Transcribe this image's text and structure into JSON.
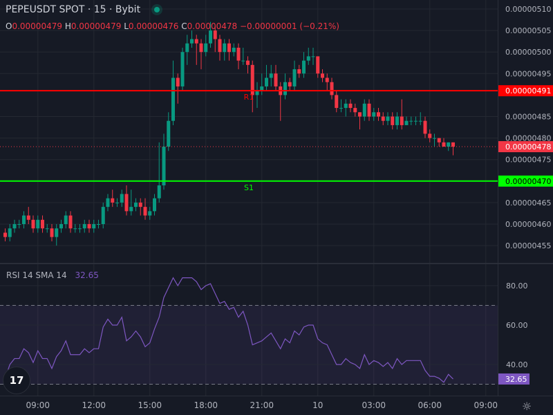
{
  "header": {
    "title": "PEPEUSDT SPOT · 15 · Bybit",
    "status": "market-open",
    "ohlc": {
      "o_label": "O",
      "o": "0.00000479",
      "h_label": "H",
      "h": "0.00000479",
      "l_label": "L",
      "l": "0.00000476",
      "c_label": "C",
      "c": "0.00000478",
      "change": "−0.00000001 (−0.21%)"
    }
  },
  "rsi_legend": {
    "name": "RSI",
    "params": "14 SMA 14",
    "value": "32.65"
  },
  "colors": {
    "up": "#089981",
    "down": "#f23645",
    "rsi": "#7e57c2",
    "r1": "#ff0000",
    "s1": "#00ff00",
    "bg": "#161a25",
    "grid": "#242832"
  },
  "chart_data": [
    {
      "type": "candlestick",
      "interval": "15",
      "price_axis_ticks": [
        "0.00000510",
        "0.00000505",
        "0.00000500",
        "0.00000495",
        "0.00000485",
        "0.00000480",
        "0.00000475",
        "0.00000465",
        "0.00000460",
        "0.00000455"
      ],
      "ylim": [
        4.5e-06,
        5.12e-06
      ],
      "x_ticks": [
        "09:00",
        "12:00",
        "15:00",
        "18:00",
        "21:00",
        "10",
        "03:00",
        "06:00",
        "09:00"
      ],
      "grid": true,
      "levels": [
        {
          "name": "R1",
          "price": 4.91e-06,
          "label": "0.00000491",
          "color": "#ff0000"
        },
        {
          "name": "S1",
          "price": 4.7e-06,
          "label": "0.00000470",
          "color": "#00ff00"
        }
      ],
      "last_price": {
        "price": 4.78e-06,
        "label": "0.00000478"
      },
      "candles_ohlc": [
        [
          4.58e-06,
          4.59e-06,
          4.56e-06,
          4.57e-06
        ],
        [
          4.57e-06,
          4.6e-06,
          4.56e-06,
          4.59e-06
        ],
        [
          4.59e-06,
          4.61e-06,
          4.58e-06,
          4.6e-06
        ],
        [
          4.6e-06,
          4.61e-06,
          4.59e-06,
          4.6e-06
        ],
        [
          4.6e-06,
          4.63e-06,
          4.59e-06,
          4.62e-06
        ],
        [
          4.62e-06,
          4.64e-06,
          4.6e-06,
          4.61e-06
        ],
        [
          4.61e-06,
          4.62e-06,
          4.58e-06,
          4.59e-06
        ],
        [
          4.59e-06,
          4.62e-06,
          4.58e-06,
          4.61e-06
        ],
        [
          4.61e-06,
          4.62e-06,
          4.58e-06,
          4.59e-06
        ],
        [
          4.59e-06,
          4.6e-06,
          4.58e-06,
          4.59e-06
        ],
        [
          4.59e-06,
          4.6e-06,
          4.56e-06,
          4.57e-06
        ],
        [
          4.57e-06,
          4.6e-06,
          4.55e-06,
          4.59e-06
        ],
        [
          4.59e-06,
          4.61e-06,
          4.58e-06,
          4.6e-06
        ],
        [
          4.6e-06,
          4.63e-06,
          4.59e-06,
          4.62e-06
        ],
        [
          4.62e-06,
          4.63e-06,
          4.58e-06,
          4.59e-06
        ],
        [
          4.59e-06,
          4.6e-06,
          4.58e-06,
          4.59e-06
        ],
        [
          4.59e-06,
          4.6e-06,
          4.58e-06,
          4.59e-06
        ],
        [
          4.59e-06,
          4.61e-06,
          4.58e-06,
          4.6e-06
        ],
        [
          4.6e-06,
          4.61e-06,
          4.58e-06,
          4.59e-06
        ],
        [
          4.59e-06,
          4.61e-06,
          4.58e-06,
          4.6e-06
        ],
        [
          4.6e-06,
          4.61e-06,
          4.59e-06,
          4.6e-06
        ],
        [
          4.6e-06,
          4.65e-06,
          4.59e-06,
          4.64e-06
        ],
        [
          4.64e-06,
          4.67e-06,
          4.63e-06,
          4.66e-06
        ],
        [
          4.66e-06,
          4.68e-06,
          4.64e-06,
          4.65e-06
        ],
        [
          4.65e-06,
          4.66e-06,
          4.64e-06,
          4.65e-06
        ],
        [
          4.65e-06,
          4.68e-06,
          4.64e-06,
          4.67e-06
        ],
        [
          4.67e-06,
          4.69e-06,
          4.62e-06,
          4.63e-06
        ],
        [
          4.63e-06,
          4.68e-06,
          4.62e-06,
          4.64e-06
        ],
        [
          4.64e-06,
          4.66e-06,
          4.63e-06,
          4.65e-06
        ],
        [
          4.65e-06,
          4.66e-06,
          4.62e-06,
          4.64e-06
        ],
        [
          4.64e-06,
          4.66e-06,
          4.61e-06,
          4.62e-06
        ],
        [
          4.62e-06,
          4.64e-06,
          4.61e-06,
          4.63e-06
        ],
        [
          4.63e-06,
          4.67e-06,
          4.62e-06,
          4.66e-06
        ],
        [
          4.66e-06,
          4.79e-06,
          4.65e-06,
          4.69e-06
        ],
        [
          4.69e-06,
          4.81e-06,
          4.68e-06,
          4.78e-06
        ],
        [
          4.78e-06,
          4.86e-06,
          4.77e-06,
          4.84e-06
        ],
        [
          4.84e-06,
          4.98e-06,
          4.83e-06,
          4.94e-06
        ],
        [
          4.94e-06,
          4.95e-06,
          4.88e-06,
          4.92e-06
        ],
        [
          4.92e-06,
          5.01e-06,
          4.91e-06,
          5e-06
        ],
        [
          5e-06,
          5.04e-06,
          4.97e-06,
          5.02e-06
        ],
        [
          5.02e-06,
          5.05e-06,
          5.01e-06,
          5.03e-06
        ],
        [
          5.03e-06,
          5.04e-06,
          4.97e-06,
          5.02e-06
        ],
        [
          5.02e-06,
          5.03e-06,
          4.96e-06,
          5e-06
        ],
        [
          5e-06,
          5.04e-06,
          4.99e-06,
          5.02e-06
        ],
        [
          5.02e-06,
          5.07e-06,
          5.01e-06,
          5.05e-06
        ],
        [
          5.05e-06,
          5.06e-06,
          5e-06,
          5.03e-06
        ],
        [
          5.03e-06,
          5.04e-06,
          4.98e-06,
          5e-06
        ],
        [
          5e-06,
          5.03e-06,
          4.98e-06,
          5.02e-06
        ],
        [
          5.02e-06,
          5.03e-06,
          4.98e-06,
          5e-06
        ],
        [
          5e-06,
          5.02e-06,
          4.99e-06,
          5.01e-06
        ],
        [
          5.01e-06,
          5.02e-06,
          4.96e-06,
          4.98e-06
        ],
        [
          4.98e-06,
          5.01e-06,
          4.97e-06,
          4.98e-06
        ],
        [
          4.98e-06,
          4.99e-06,
          4.95e-06,
          4.97e-06
        ],
        [
          4.97e-06,
          4.98e-06,
          4.86e-06,
          4.9e-06
        ],
        [
          4.9e-06,
          4.93e-06,
          4.87e-06,
          4.91e-06
        ],
        [
          4.91e-06,
          4.95e-06,
          4.9e-06,
          4.92e-06
        ],
        [
          4.92e-06,
          4.97e-06,
          4.91e-06,
          4.94e-06
        ],
        [
          4.94e-06,
          4.97e-06,
          4.92e-06,
          4.95e-06
        ],
        [
          4.95e-06,
          4.97e-06,
          4.91e-06,
          4.92e-06
        ],
        [
          4.92e-06,
          4.93e-06,
          4.84e-06,
          4.9e-06
        ],
        [
          4.9e-06,
          4.95e-06,
          4.89e-06,
          4.93e-06
        ],
        [
          4.93e-06,
          4.94e-06,
          4.91e-06,
          4.92e-06
        ],
        [
          4.92e-06,
          4.98e-06,
          4.91e-06,
          4.96e-06
        ],
        [
          4.96e-06,
          4.97e-06,
          4.94e-06,
          4.95e-06
        ],
        [
          4.95e-06,
          5e-06,
          4.94e-06,
          4.98e-06
        ],
        [
          4.98e-06,
          5.01e-06,
          4.97e-06,
          4.99e-06
        ],
        [
          4.99e-06,
          5.01e-06,
          4.97e-06,
          4.99e-06
        ],
        [
          4.99e-06,
          4.99e-06,
          4.94e-06,
          4.95e-06
        ],
        [
          4.95e-06,
          4.96e-06,
          4.93e-06,
          4.94e-06
        ],
        [
          4.94e-06,
          4.95e-06,
          4.91e-06,
          4.93e-06
        ],
        [
          4.93e-06,
          4.94e-06,
          4.89e-06,
          4.9e-06
        ],
        [
          4.9e-06,
          4.91e-06,
          4.86e-06,
          4.87e-06
        ],
        [
          4.87e-06,
          4.89e-06,
          4.86e-06,
          4.87e-06
        ],
        [
          4.87e-06,
          4.89e-06,
          4.85e-06,
          4.88e-06
        ],
        [
          4.88e-06,
          4.89e-06,
          4.86e-06,
          4.87e-06
        ],
        [
          4.87e-06,
          4.88e-06,
          4.85e-06,
          4.86e-06
        ],
        [
          4.86e-06,
          4.86e-06,
          4.82e-06,
          4.85e-06
        ],
        [
          4.85e-06,
          4.89e-06,
          4.84e-06,
          4.88e-06
        ],
        [
          4.88e-06,
          4.89e-06,
          4.84e-06,
          4.85e-06
        ],
        [
          4.85e-06,
          4.87e-06,
          4.84e-06,
          4.86e-06
        ],
        [
          4.86e-06,
          4.87e-06,
          4.84e-06,
          4.85e-06
        ],
        [
          4.85e-06,
          4.86e-06,
          4.83e-06,
          4.84e-06
        ],
        [
          4.84e-06,
          4.86e-06,
          4.83e-06,
          4.85e-06
        ],
        [
          4.85e-06,
          4.86e-06,
          4.82e-06,
          4.83e-06
        ],
        [
          4.83e-06,
          4.86e-06,
          4.82e-06,
          4.85e-06
        ],
        [
          4.85e-06,
          4.89e-06,
          4.82e-06,
          4.83e-06
        ],
        [
          4.83e-06,
          4.85e-06,
          4.83e-06,
          4.84e-06
        ],
        [
          4.84e-06,
          4.85e-06,
          4.83e-06,
          4.84e-06
        ],
        [
          4.84e-06,
          4.85e-06,
          4.83e-06,
          4.84e-06
        ],
        [
          4.84e-06,
          4.86e-06,
          4.83e-06,
          4.84e-06
        ],
        [
          4.84e-06,
          4.85e-06,
          4.8e-06,
          4.81e-06
        ],
        [
          4.81e-06,
          4.82e-06,
          4.79e-06,
          4.8e-06
        ],
        [
          4.8e-06,
          4.81e-06,
          4.78e-06,
          4.8e-06
        ],
        [
          4.8e-06,
          4.8e-06,
          4.78e-06,
          4.79e-06
        ],
        [
          4.79e-06,
          4.8e-06,
          4.78e-06,
          4.78e-06
        ],
        [
          4.78e-06,
          4.79e-06,
          4.77e-06,
          4.79e-06
        ],
        [
          4.79e-06,
          4.79e-06,
          4.76e-06,
          4.78e-06
        ]
      ]
    },
    {
      "type": "line",
      "series_name": "RSI",
      "ylim": [
        27,
        90
      ],
      "y_ticks": [
        "80.00",
        "60.00",
        "40.00"
      ],
      "bands": [
        30,
        70
      ],
      "last_label": "32.65",
      "values": [
        33,
        40,
        43,
        43,
        48,
        46,
        41,
        47,
        43,
        43,
        38,
        44,
        47,
        52,
        45,
        45,
        45,
        48,
        46,
        48,
        48,
        59,
        63,
        60,
        60,
        64,
        52,
        54,
        57,
        54,
        49,
        51,
        58,
        64,
        74,
        79,
        84,
        80,
        84,
        84,
        84,
        82,
        78,
        80,
        81,
        76,
        71,
        72,
        68,
        69,
        64,
        67,
        60,
        50,
        51,
        52,
        54,
        56,
        52,
        48,
        53,
        51,
        57,
        55,
        59,
        60,
        60,
        53,
        51,
        50,
        45,
        40,
        40,
        43,
        41,
        40,
        38,
        45,
        40,
        42,
        41,
        39,
        41,
        38,
        43,
        40,
        42,
        42,
        42,
        42,
        37,
        34,
        34,
        33,
        31,
        35,
        32.65
      ]
    }
  ]
}
